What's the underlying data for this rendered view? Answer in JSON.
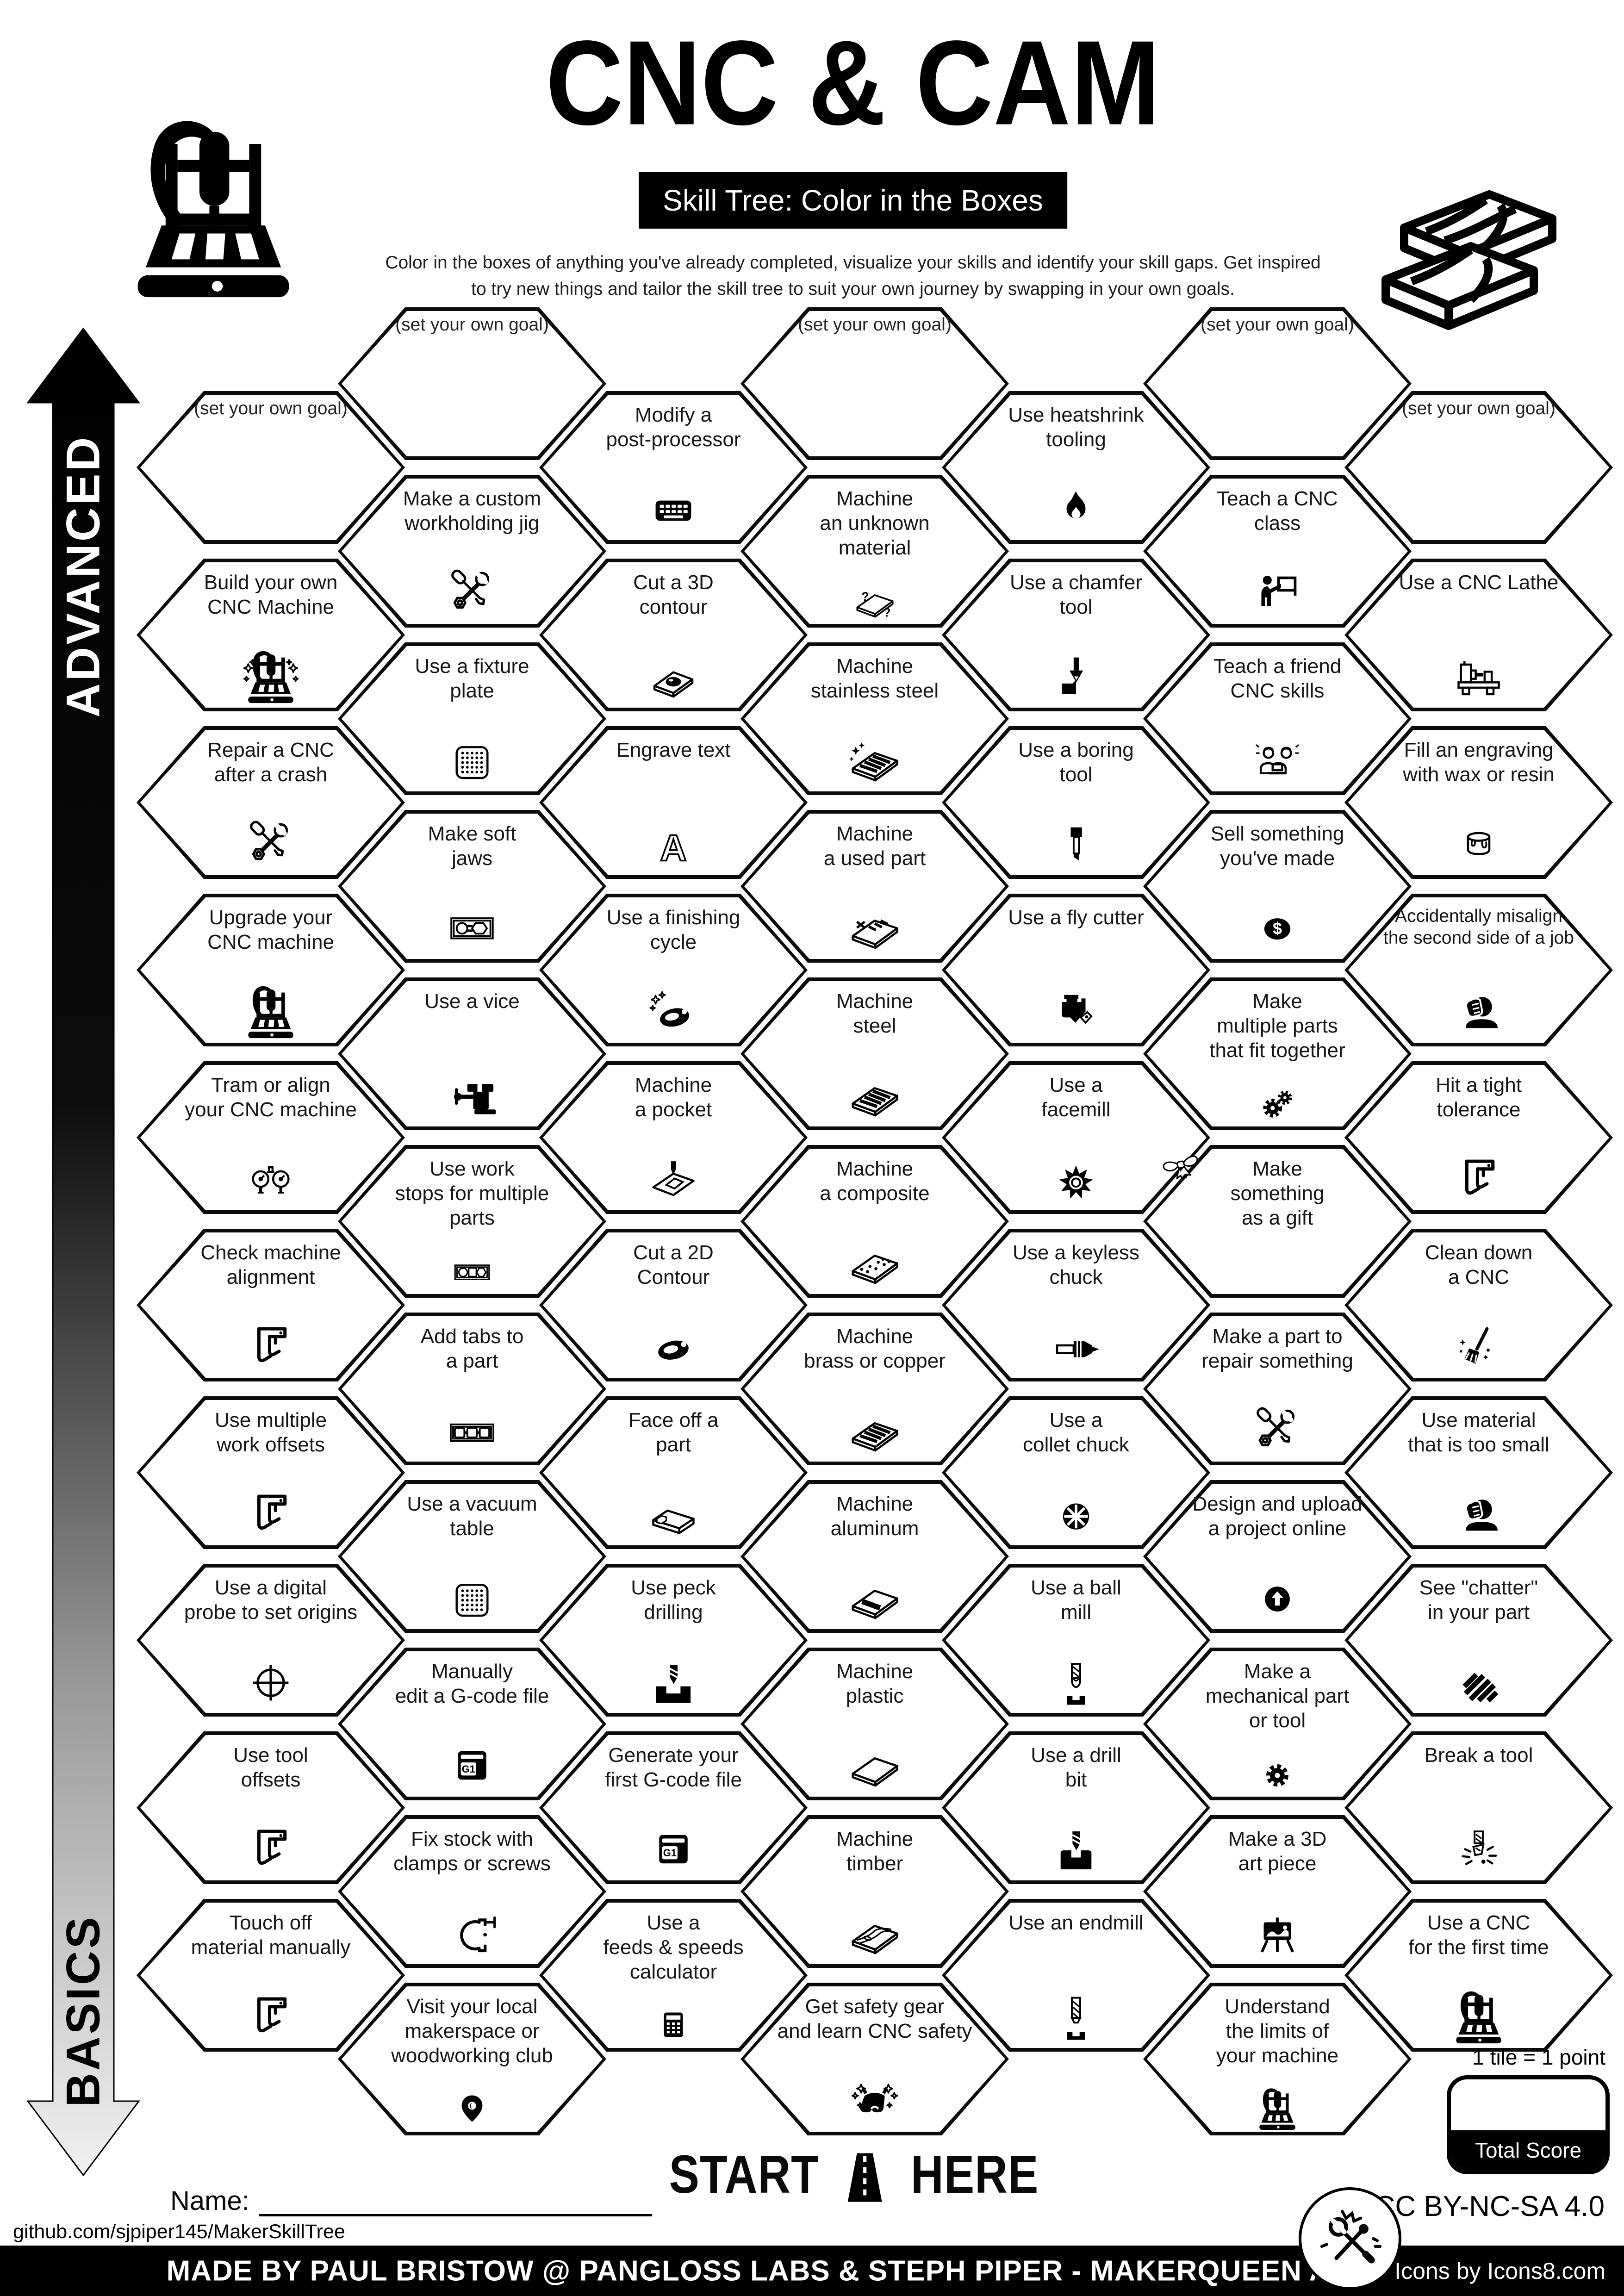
{
  "header": {
    "title": "CNC & CAM",
    "subtitle": "Skill Tree: Color in the Boxes",
    "description_line1": "Color in the boxes of anything you've already completed, visualize your skills and identify your skill gaps.  Get inspired",
    "description_line2": "to try new things and tailor the skill tree to suit your own journey by swapping in your own goals.",
    "left_logo_icon": "cnc-router-icon",
    "right_logo_icon": "timber-planks-icon"
  },
  "axis": {
    "top_label": "ADVANCED",
    "bottom_label": "BASICS"
  },
  "columns": [
    {
      "hexes": [
        {
          "label": "(set your own goal)",
          "icon": ""
        },
        {
          "label": "Build your own\nCNC Machine",
          "icon": "cnc-sparkle"
        },
        {
          "label": "Repair a CNC\nafter a crash",
          "icon": "tools-outline"
        },
        {
          "label": "Upgrade your\nCNC machine",
          "icon": "cnc-machine"
        },
        {
          "label": "Tram or align\nyour CNC machine",
          "icon": "gauges"
        },
        {
          "label": "Check machine\nalignment",
          "icon": "caliper"
        },
        {
          "label": "Use multiple\nwork offsets",
          "icon": "caliper"
        },
        {
          "label": "Use a digital\nprobe to set origins",
          "icon": "crosshair"
        },
        {
          "label": "Use tool\noffsets",
          "icon": "caliper"
        },
        {
          "label": "Touch off\nmaterial manually",
          "icon": "caliper"
        }
      ]
    },
    {
      "hexes": [
        {
          "label": "(set your own goal)",
          "icon": ""
        },
        {
          "label": "Make a custom\nworkholding jig",
          "icon": "tools-outline"
        },
        {
          "label": "Use a fixture\nplate",
          "icon": "dot-plate"
        },
        {
          "label": "Make soft\njaws",
          "icon": "soft-jaws"
        },
        {
          "label": "Use a vice",
          "icon": "vice"
        },
        {
          "label": "Use work\nstops for multiple\nparts",
          "icon": "work-stops"
        },
        {
          "label": "Add tabs to\na part",
          "icon": "tabs"
        },
        {
          "label": "Use a vacuum\ntable",
          "icon": "dot-plate"
        },
        {
          "label": "Manually\nedit a G-code file",
          "icon": "gcode-file"
        },
        {
          "label": "Fix stock with\nclamps or screws",
          "icon": "c-clamp"
        },
        {
          "label": "Visit your local\nmakerspace or\nwoodworking club",
          "icon": "location-pin"
        }
      ]
    },
    {
      "hexes": [
        {
          "label": "Modify a\npost-processor",
          "icon": "keyboard"
        },
        {
          "label": "Cut a 3D\ncontour",
          "icon": "slab-blob"
        },
        {
          "label": "Engrave text",
          "icon": "letter-a"
        },
        {
          "label": "Use a finishing\ncycle",
          "icon": "gasket-sparkle"
        },
        {
          "label": "Machine\na pocket",
          "icon": "pocket"
        },
        {
          "label": "Cut a 2D\nContour",
          "icon": "gasket"
        },
        {
          "label": "Face off a\npart",
          "icon": "bar3d"
        },
        {
          "label": "Use peck\ndrilling",
          "icon": "peck-drill"
        },
        {
          "label": "Generate your\nfirst G-code file",
          "icon": "gcode-file"
        },
        {
          "label": "Use a\nfeeds & speeds\ncalculator",
          "icon": "calculator"
        }
      ]
    },
    {
      "hexes": [
        {
          "label": "(set your own goal)",
          "icon": ""
        },
        {
          "label": "Machine\nan unknown\nmaterial",
          "icon": "slab-question"
        },
        {
          "label": "Machine\nstainless steel",
          "icon": "slab-sparkle-stripes"
        },
        {
          "label": "Machine\na used part",
          "icon": "slab-used"
        },
        {
          "label": "Machine\nsteel",
          "icon": "slab-stripes"
        },
        {
          "label": "Machine\na composite",
          "icon": "slab-dots"
        },
        {
          "label": "Machine\nbrass or copper",
          "icon": "slab-stripes"
        },
        {
          "label": "Machine\naluminum",
          "icon": "slab-band"
        },
        {
          "label": "Machine\nplastic",
          "icon": "slab-plain"
        },
        {
          "label": "Machine\ntimber",
          "icon": "slab-wood"
        },
        {
          "label": "Get safety gear\nand learn CNC safety",
          "icon": "safety-glasses"
        }
      ]
    },
    {
      "hexes": [
        {
          "label": "Use heatshrink\ntooling",
          "icon": "flame"
        },
        {
          "label": "Use a chamfer\ntool",
          "icon": "chamfer-tool"
        },
        {
          "label": "Use a boring\ntool",
          "icon": "boring-tool"
        },
        {
          "label": "Use a fly cutter",
          "icon": "fly-cutter"
        },
        {
          "label": "Use a\nfacemill",
          "icon": "facemill"
        },
        {
          "label": "Use a keyless\nchuck",
          "icon": "keyless-chuck"
        },
        {
          "label": "Use a\ncollet chuck",
          "icon": "collet-chuck"
        },
        {
          "label": "Use a ball\nmill",
          "icon": "ball-mill"
        },
        {
          "label": "Use a drill\nbit",
          "icon": "drill-block"
        },
        {
          "label": "Use an endmill",
          "icon": "endmill-icon"
        }
      ]
    },
    {
      "hexes": [
        {
          "label": "(set your own goal)",
          "icon": ""
        },
        {
          "label": "Teach a CNC\nclass",
          "icon": "teacher"
        },
        {
          "label": "Teach a friend\nCNC skills",
          "icon": "friends"
        },
        {
          "label": "Sell something\nyou've made",
          "icon": "dollar-coin"
        },
        {
          "label": "Make\nmultiple parts\nthat fit together",
          "icon": "gears"
        },
        {
          "label": "Make\nsomething\nas a gift",
          "icon": "bow"
        },
        {
          "label": "Make a part to\nrepair something",
          "icon": "tools-outline"
        },
        {
          "label": "Design and upload\na project online",
          "icon": "upload"
        },
        {
          "label": "Make a\nmechanical part\nor tool",
          "icon": "gear"
        },
        {
          "label": "Make a 3D\nart piece",
          "icon": "easel"
        },
        {
          "label": "Understand\nthe limits of\nyour machine",
          "icon": "cnc-machine"
        }
      ]
    },
    {
      "hexes": [
        {
          "label": "(set your own goal)",
          "icon": ""
        },
        {
          "label": "Use a CNC Lathe",
          "icon": "lathe"
        },
        {
          "label": "Fill an engraving\nwith wax or resin",
          "icon": "paint-bucket"
        },
        {
          "label": "Accidentally misalign\nthe second side of a job",
          "icon": "facepalm"
        },
        {
          "label": "Hit a tight\ntolerance",
          "icon": "caliper"
        },
        {
          "label": "Clean down\na CNC",
          "icon": "broom"
        },
        {
          "label": "Use material\nthat is too small",
          "icon": "facepalm"
        },
        {
          "label": "See \"chatter\"\nin your part",
          "icon": "chatter"
        },
        {
          "label": "Break a tool",
          "icon": "break-tool"
        },
        {
          "label": "Use a CNC\nfor the first time",
          "icon": "cnc-machine"
        }
      ]
    }
  ],
  "start_here": {
    "start": "START",
    "here": "HERE",
    "road_icon": "road-icon"
  },
  "score": {
    "tile_note": "1 tile = 1 point",
    "box_label": "Total Score"
  },
  "signature": {
    "name_label": "Name:"
  },
  "links": {
    "github": "github.com/sjpiper145/MakerSkillTree"
  },
  "license": "CC BY-NC-SA 4.0",
  "footer": {
    "credit": "MADE BY PAUL BRISTOW @ PANGLOSS LABS & STEPH PIPER  -  MAKERQUEEN AU",
    "icons_credit": "Icons by Icons8.com",
    "badge_icon": "crossed-tools-badge-icon"
  },
  "colors": {
    "ink": "#000000",
    "paper": "#ffffff"
  }
}
